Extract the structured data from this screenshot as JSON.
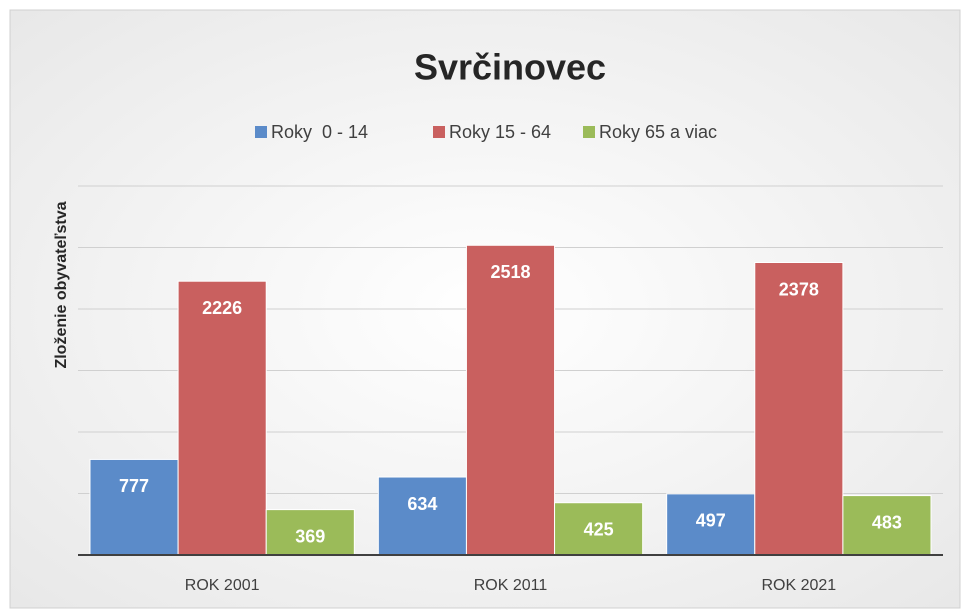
{
  "chart_data": {
    "type": "bar",
    "title": "Svrčinovec",
    "y_label": "Zloženie obyvateľstva",
    "categories": [
      "ROK 2001",
      "ROK 2011",
      "ROK 2021"
    ],
    "series": [
      {
        "name": "Roky  0 - 14",
        "color": "#5b8bc9",
        "values": [
          777,
          634,
          497
        ]
      },
      {
        "name": "Roky 15 - 64",
        "color": "#c9605f",
        "values": [
          2226,
          2518,
          2378
        ]
      },
      {
        "name": "Roky 65 a viac",
        "color": "#9bbb59",
        "values": [
          369,
          425,
          483
        ]
      }
    ],
    "ylim": [
      0,
      3000
    ],
    "yticks": [
      0,
      500,
      1000,
      1500,
      2000,
      2500,
      3000
    ],
    "grid": true,
    "legend": "top"
  }
}
